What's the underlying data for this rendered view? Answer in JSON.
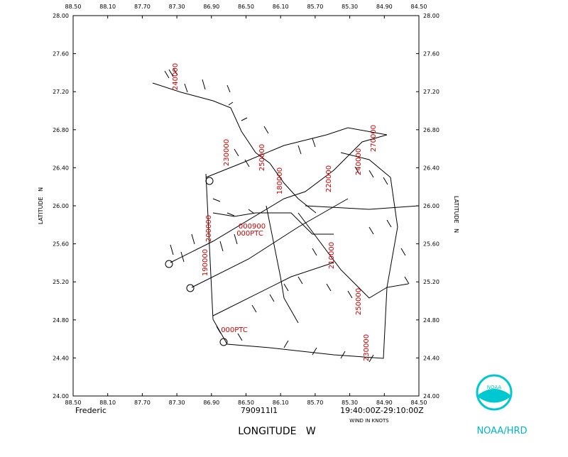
{
  "chart_data": {
    "type": "track",
    "storm": "Frederic",
    "flight": "790911I1",
    "time_range": "19:40:00Z-29:10:00Z",
    "wind_units": "WIND IN KNOTS",
    "x_label": "LONGITUDE   W",
    "y_label": "LATITUDE   N",
    "credit": "NOAA/HRD",
    "logo_text": "NOAA",
    "xlim": [
      88.5,
      84.5
    ],
    "ylim": [
      24,
      28
    ],
    "xticks": [
      {
        "value": 88.5,
        "label": "88.50"
      },
      {
        "value": 88.1,
        "label": "88.10"
      },
      {
        "value": 87.7,
        "label": "87.70"
      },
      {
        "value": 87.3,
        "label": "87.30"
      },
      {
        "value": 86.9,
        "label": "86.90"
      },
      {
        "value": 86.5,
        "label": "86.50"
      },
      {
        "value": 86.1,
        "label": "86.10"
      },
      {
        "value": 85.7,
        "label": "85.70"
      },
      {
        "value": 85.3,
        "label": "85.30"
      },
      {
        "value": 84.9,
        "label": "84.90"
      },
      {
        "value": 84.5,
        "label": "84.50"
      }
    ],
    "yticks": [
      {
        "value": 24,
        "label": "24.00"
      },
      {
        "value": 24.4,
        "label": "24.40"
      },
      {
        "value": 24.8,
        "label": "24.80"
      },
      {
        "value": 25.2,
        "label": "25.20"
      },
      {
        "value": 25.6,
        "label": "25.60"
      },
      {
        "value": 26,
        "label": "26.00"
      },
      {
        "value": 26.4,
        "label": "26.40"
      },
      {
        "value": 26.8,
        "label": "26.80"
      },
      {
        "value": 27.2,
        "label": "27.20"
      },
      {
        "value": 27.6,
        "label": "27.60"
      },
      {
        "value": 28,
        "label": "28.00"
      }
    ],
    "annotations": [
      "240000",
      "230000",
      "250000",
      "180000",
      "220000",
      "240000",
      "270000",
      "200000",
      "190000",
      "210000",
      "250000",
      "230000",
      "000900",
      "000PTC",
      "000PTC"
    ],
    "annotation_color": "#cc0000"
  }
}
